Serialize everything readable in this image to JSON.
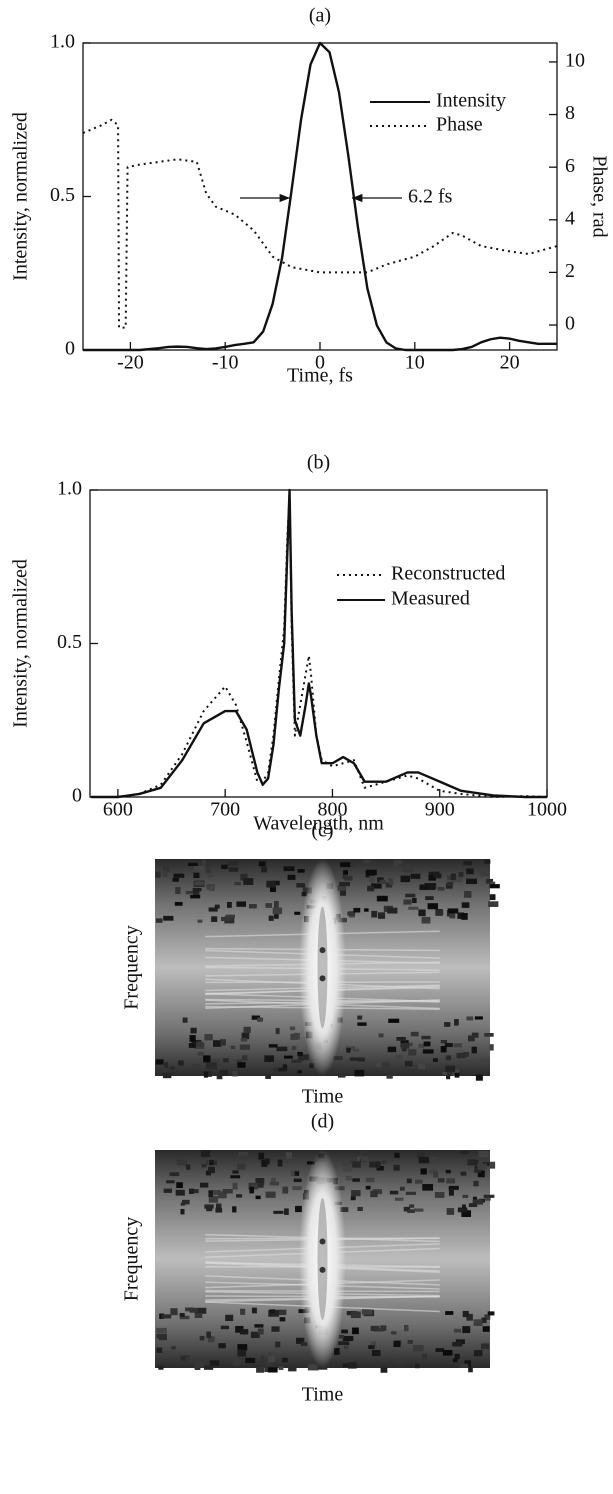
{
  "chart_data": [
    {
      "type": "line",
      "title": "(a)",
      "xlabel": "Time, fs",
      "ylabel": "Intensity, normalized",
      "y2label": "Phase, rad",
      "xlim": [
        -25,
        25
      ],
      "xticks": [
        -20,
        -10,
        0,
        10,
        20
      ],
      "ylim": [
        0,
        1
      ],
      "yticks": [
        0,
        0.5,
        {
          "value": 1,
          "label": "1.0"
        }
      ],
      "y2lim": [
        -0.95,
        10.72
      ],
      "y2ticks": [
        0,
        2,
        4,
        6,
        8,
        10
      ],
      "annotations": [
        "6.2 fs"
      ],
      "series": [
        {
          "name": "Intensity",
          "color": "#111111",
          "style": "solid",
          "x": [
            -25,
            -24,
            -23,
            -22,
            -21,
            -20,
            -19,
            -18,
            -17,
            -16,
            -15,
            -14,
            -13,
            -12,
            -11,
            -10,
            -9,
            -8,
            -7,
            -6,
            -5,
            -4,
            -3,
            -2,
            -1,
            0,
            1,
            2,
            3,
            4,
            5,
            6,
            7,
            8,
            9,
            10,
            11,
            12,
            13,
            14,
            15,
            16,
            17,
            18,
            19,
            20,
            21,
            22,
            23,
            24,
            25
          ],
          "values": [
            0,
            0,
            0,
            0,
            0,
            0,
            0,
            0.003,
            0.006,
            0.01,
            0.011,
            0.01,
            0.006,
            0.003,
            0.005,
            0.01,
            0.016,
            0.02,
            0.025,
            0.06,
            0.15,
            0.3,
            0.52,
            0.75,
            0.93,
            1,
            0.97,
            0.84,
            0.63,
            0.4,
            0.2,
            0.08,
            0.025,
            0.005,
            0,
            0,
            0,
            0,
            0,
            0,
            0.003,
            0.01,
            0.025,
            0.035,
            0.04,
            0.037,
            0.03,
            0.025,
            0.02,
            0.02,
            0.02
          ]
        },
        {
          "name": "Phase",
          "color": "#111111",
          "style": "dotted",
          "axis": "y2",
          "x": [
            -25,
            -23,
            -22,
            -21.3,
            -21.2,
            -20.5,
            -20.3,
            -19,
            -17,
            -15,
            -13,
            -12,
            -11,
            -9,
            -7,
            -5,
            -3,
            0,
            3,
            5,
            7,
            10,
            12,
            14,
            15,
            17,
            20,
            22,
            25
          ],
          "values": [
            7.3,
            7.6,
            7.8,
            7.6,
            -0.1,
            -0.1,
            6.0,
            6.1,
            6.2,
            6.3,
            6.2,
            5.0,
            4.5,
            4.2,
            3.6,
            2.6,
            2.2,
            2.0,
            2.0,
            2.0,
            2.3,
            2.6,
            3.0,
            3.5,
            3.4,
            3.0,
            2.8,
            2.7,
            3.0
          ]
        }
      ]
    },
    {
      "type": "line",
      "title": "(b)",
      "xlabel": "Wavelength, nm",
      "ylabel": "Intensity, normalized",
      "xlim": [
        574,
        1000
      ],
      "xticks": [
        600,
        700,
        800,
        900,
        1000
      ],
      "ylim": [
        0,
        1
      ],
      "yticks": [
        0,
        0.5,
        {
          "value": 1,
          "label": "1.0"
        }
      ],
      "x": [
        575,
        600,
        620,
        640,
        660,
        680,
        700,
        710,
        720,
        730,
        735,
        740,
        745,
        750,
        755,
        758,
        760,
        762,
        765,
        770,
        775,
        778,
        780,
        785,
        790,
        800,
        810,
        820,
        830,
        850,
        870,
        880,
        900,
        920,
        950,
        980,
        1000
      ],
      "series": [
        {
          "name": "Reconstructed",
          "color": "#111111",
          "style": "dotted",
          "values": [
            0,
            0,
            0.01,
            0.04,
            0.14,
            0.28,
            0.36,
            0.3,
            0.18,
            0.05,
            0.05,
            0.08,
            0.2,
            0.38,
            0.55,
            0.85,
            0.98,
            0.55,
            0.2,
            0.3,
            0.4,
            0.46,
            0.4,
            0.2,
            0.12,
            0.1,
            0.11,
            0.12,
            0.03,
            0.05,
            0.07,
            0.06,
            0.02,
            0.01,
            0,
            0.003,
            0
          ]
        },
        {
          "name": "Measured",
          "color": "#111111",
          "style": "solid",
          "values": [
            0,
            0,
            0.01,
            0.03,
            0.12,
            0.24,
            0.28,
            0.28,
            0.22,
            0.08,
            0.04,
            0.06,
            0.17,
            0.35,
            0.5,
            0.8,
            1.0,
            0.6,
            0.25,
            0.2,
            0.3,
            0.37,
            0.33,
            0.2,
            0.11,
            0.11,
            0.13,
            0.11,
            0.05,
            0.05,
            0.08,
            0.08,
            0.05,
            0.02,
            0.005,
            0,
            0
          ]
        }
      ]
    },
    {
      "type": "image",
      "title": "(c)",
      "xlabel": "Time",
      "ylabel": "Frequency"
    },
    {
      "type": "image",
      "title": "(d)",
      "xlabel": "Time",
      "ylabel": "Frequency"
    }
  ]
}
